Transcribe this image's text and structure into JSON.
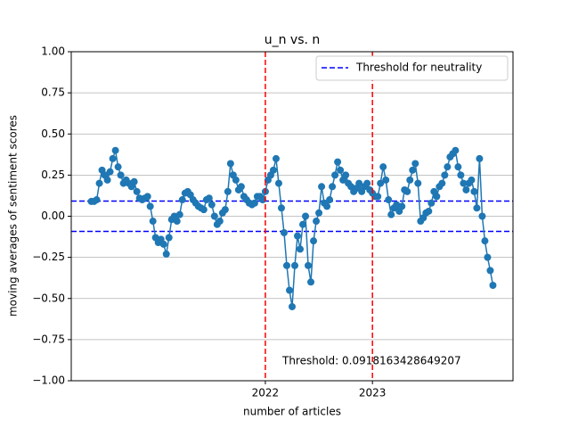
{
  "chart_data": {
    "type": "line",
    "title": "u_n vs. n",
    "xlabel": "number of articles",
    "ylabel": "moving averages of sentiment scores",
    "x": [
      0,
      1,
      2,
      3,
      4,
      5,
      6,
      7,
      8,
      9,
      10,
      11,
      12,
      13,
      14,
      15,
      16,
      17,
      18,
      19,
      20,
      21,
      22,
      23,
      24,
      25,
      26,
      27,
      28,
      29,
      30,
      31,
      32,
      33,
      34,
      35,
      36,
      37,
      38,
      39,
      40,
      41,
      42,
      43,
      44,
      45,
      46,
      47,
      48,
      49,
      50,
      51,
      52,
      53,
      54,
      55,
      56,
      57,
      58,
      59,
      60,
      61,
      62,
      63,
      64,
      65,
      66,
      67,
      68,
      69,
      70,
      71,
      72,
      73,
      74,
      75,
      76,
      77,
      78,
      79,
      80,
      81,
      82,
      83,
      84,
      85,
      86,
      87,
      88,
      89,
      90,
      91,
      92,
      93,
      94,
      95,
      96,
      97,
      98,
      99,
      100,
      101,
      102,
      103,
      104,
      105,
      106,
      107,
      108,
      109,
      110,
      111,
      112,
      113,
      114,
      115,
      116,
      117,
      118,
      119,
      120,
      121,
      122,
      123,
      124,
      125,
      126,
      127,
      128,
      129,
      130,
      131,
      132,
      133,
      134,
      135,
      136,
      137,
      138,
      139,
      140,
      141,
      142,
      143,
      144,
      145,
      146,
      147,
      148,
      149,
      150
    ],
    "series": [
      {
        "color": "#1f77b4",
        "values": [
          0.09,
          0.09,
          0.1,
          0.2,
          0.28,
          0.25,
          0.22,
          0.27,
          0.35,
          0.4,
          0.3,
          0.25,
          0.2,
          0.22,
          0.2,
          0.18,
          0.21,
          0.15,
          0.11,
          0.1,
          0.11,
          0.12,
          0.06,
          -0.03,
          -0.13,
          -0.16,
          -0.14,
          -0.17,
          -0.23,
          -0.13,
          -0.02,
          0.0,
          -0.03,
          0.01,
          0.1,
          0.14,
          0.15,
          0.13,
          0.1,
          0.08,
          0.06,
          0.05,
          0.04,
          0.1,
          0.11,
          0.07,
          0.0,
          -0.05,
          -0.03,
          0.02,
          0.04,
          0.15,
          0.32,
          0.25,
          0.22,
          0.16,
          0.18,
          0.12,
          0.1,
          0.08,
          0.07,
          0.08,
          0.12,
          0.12,
          0.1,
          0.15,
          0.22,
          0.25,
          0.28,
          0.35,
          0.2,
          0.05,
          -0.1,
          -0.3,
          -0.45,
          -0.55,
          -0.3,
          -0.12,
          -0.2,
          -0.05,
          0.0,
          -0.3,
          -0.4,
          -0.15,
          -0.03,
          0.02,
          0.18,
          0.08,
          0.06,
          0.1,
          0.18,
          0.25,
          0.33,
          0.28,
          0.22,
          0.25,
          0.2,
          0.18,
          0.15,
          0.17,
          0.2,
          0.15,
          0.18,
          0.2,
          0.16,
          0.14,
          0.12,
          0.12,
          0.2,
          0.3,
          0.22,
          0.1,
          0.01,
          0.05,
          0.07,
          0.03,
          0.06,
          0.16,
          0.15,
          0.22,
          0.28,
          0.32,
          0.2,
          -0.03,
          -0.01,
          0.02,
          0.03,
          0.08,
          0.15,
          0.12,
          0.18,
          0.2,
          0.25,
          0.3,
          0.36,
          0.38,
          0.4,
          0.3,
          0.25,
          0.2,
          0.16,
          0.2,
          0.22,
          0.15,
          0.05,
          0.35,
          0.0,
          -0.15,
          -0.25,
          -0.33,
          -0.42
        ]
      }
    ],
    "xlim": [
      -7.5,
      157.5
    ],
    "xticks": [
      {
        "value": 65,
        "label": "2022"
      },
      {
        "value": 105,
        "label": "2023"
      }
    ],
    "vline_color": "#ff0000",
    "ylim": [
      -1,
      1
    ],
    "yticks": [
      {
        "value": -1,
        "label": "−1.00"
      },
      {
        "value": -0.75,
        "label": "−0.75"
      },
      {
        "value": -0.5,
        "label": "−0.50"
      },
      {
        "value": -0.25,
        "label": "−0.25"
      },
      {
        "value": 0,
        "label": "0.00"
      },
      {
        "value": 0.25,
        "label": "0.25"
      },
      {
        "value": 0.5,
        "label": "0.50"
      },
      {
        "value": 0.75,
        "label": "0.75"
      },
      {
        "value": 1,
        "label": "1.00"
      }
    ],
    "grid": true,
    "hlines": {
      "name": "Threshold for neutrality",
      "color": "#0000ff",
      "values": [
        0.0918163428649207,
        -0.0918163428649207
      ]
    },
    "legend": "upper right",
    "annotation": "Threshold: 0.0918163428649207"
  }
}
